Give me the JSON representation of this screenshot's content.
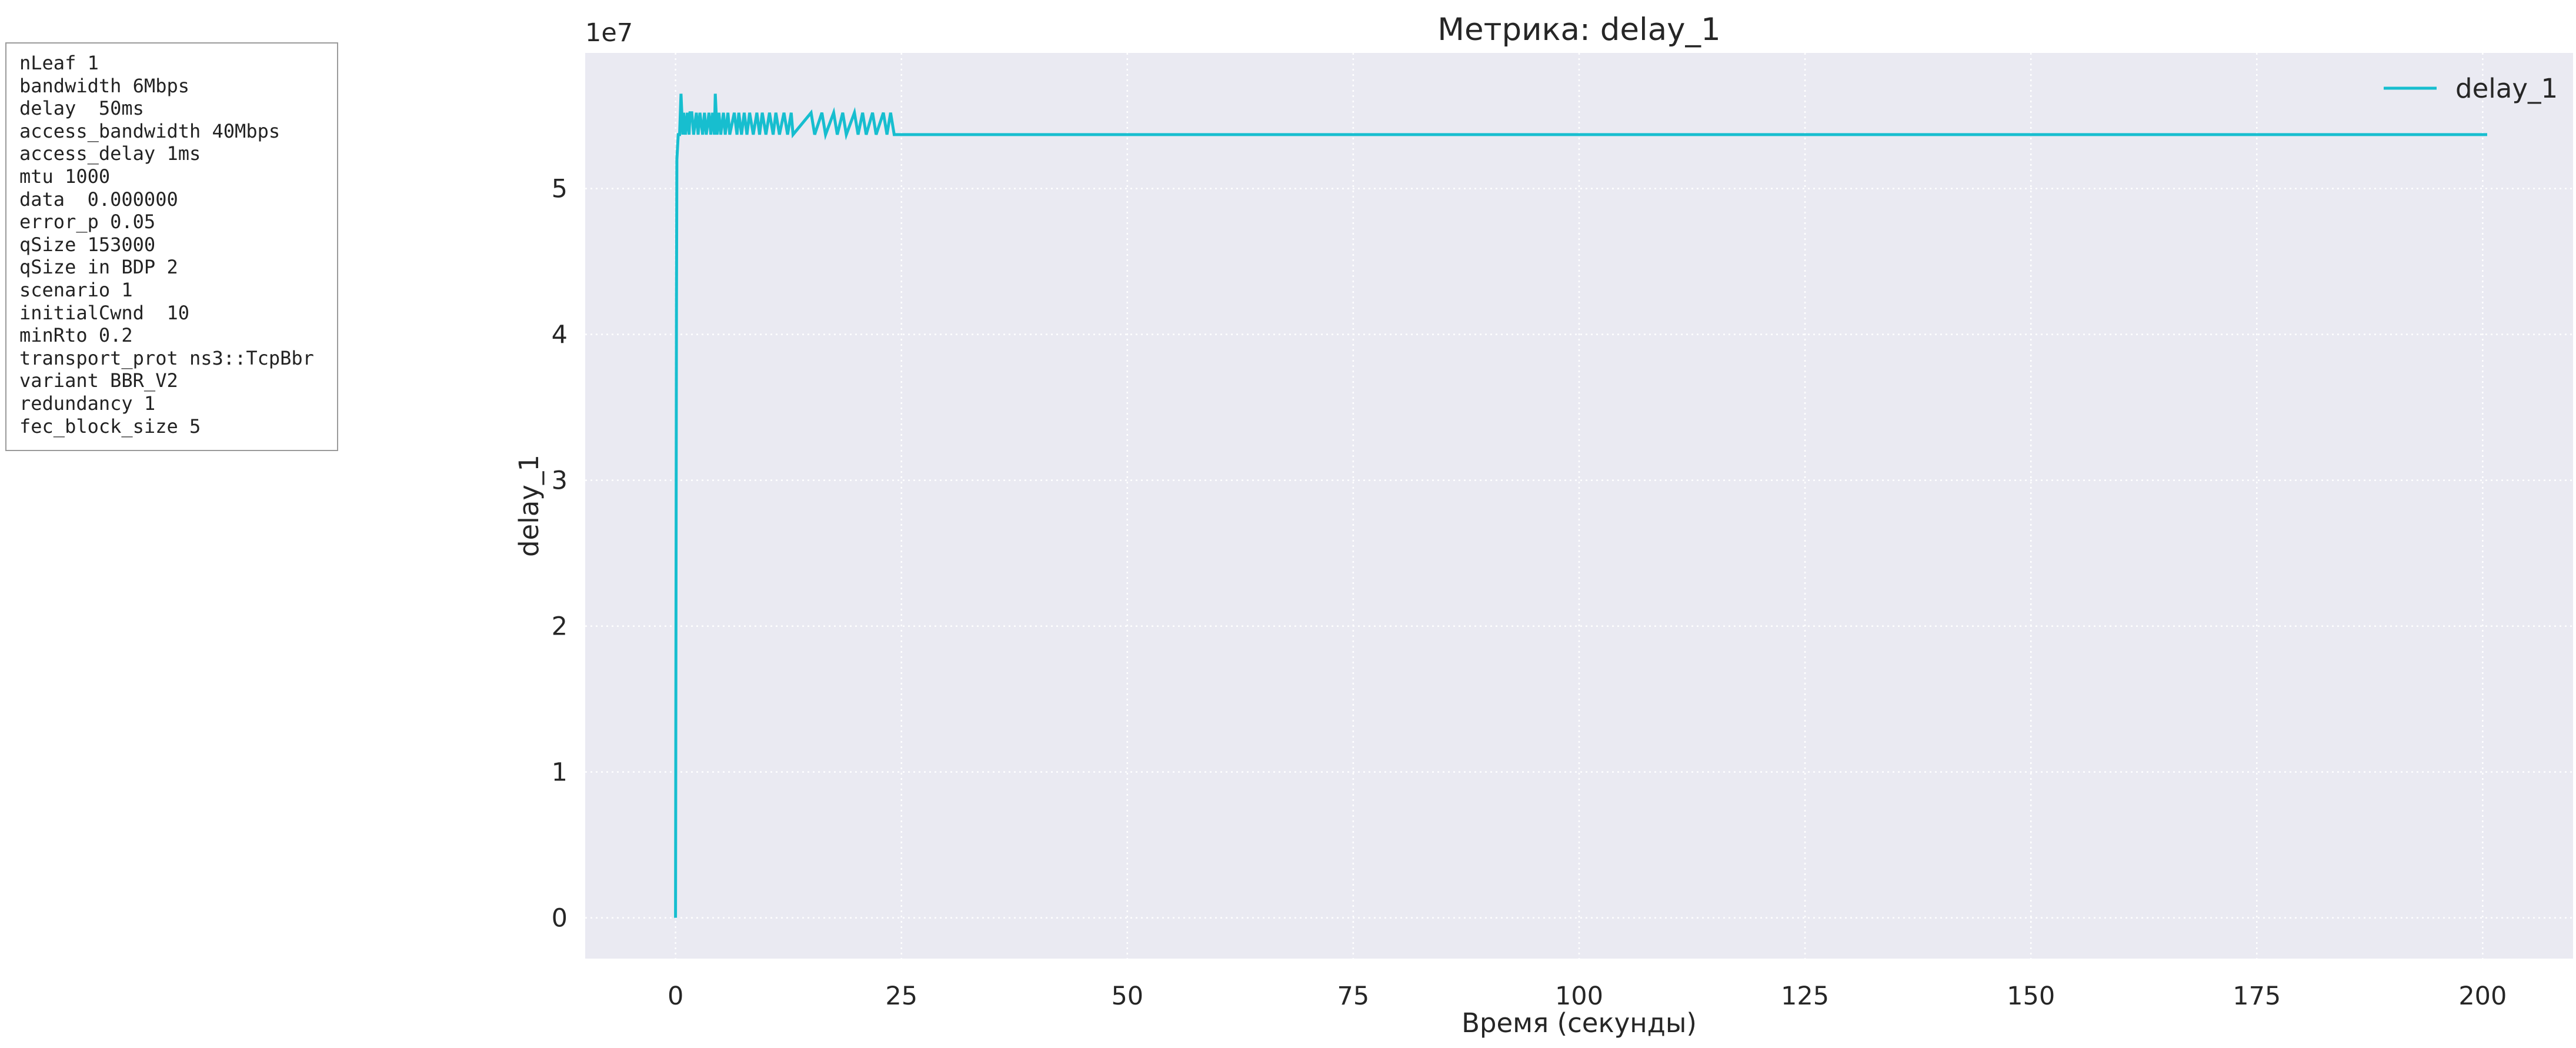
{
  "params": [
    "nLeaf 1",
    "bandwidth 6Mbps",
    "delay  50ms",
    "access_bandwidth 40Mbps",
    "access_delay 1ms",
    "mtu 1000",
    "data  0.000000",
    "error_p 0.05",
    "qSize 153000",
    "qSize in BDP 2",
    "scenario 1",
    "initialCwnd  10",
    "minRto 0.2",
    "transport_prot ns3::TcpBbr",
    "variant BBR_V2",
    "redundancy 1",
    "fec_block_size 5"
  ],
  "chart_data": {
    "type": "line",
    "title": "Метрика: delay_1",
    "xlabel": "Время (секунды)",
    "ylabel": "delay_1",
    "y_offset_label": "1e7",
    "xlim": [
      -10,
      210
    ],
    "ylim": [
      -0.28,
      5.93
    ],
    "xticks": [
      0,
      25,
      50,
      75,
      100,
      125,
      150,
      175,
      200
    ],
    "yticks": [
      0,
      1,
      2,
      3,
      4,
      5
    ],
    "grid": true,
    "legend_position": "top-right",
    "series": [
      {
        "name": "delay_1",
        "color": "#17becf",
        "x": [
          0,
          0.1,
          0.15,
          0.3,
          0.45,
          0.6,
          0.8,
          0.9,
          1.1,
          1.3,
          1.5,
          1.6,
          1.8,
          2.0,
          2.3,
          2.5,
          2.7,
          3.0,
          3.2,
          3.4,
          3.7,
          3.9,
          4.1,
          4.3,
          4.4,
          4.6,
          4.8,
          5.0,
          5.3,
          5.5,
          5.8,
          6.0,
          6.5,
          6.8,
          7.0,
          7.3,
          7.6,
          7.9,
          8.2,
          8.6,
          9.0,
          9.3,
          9.6,
          10.0,
          10.4,
          10.8,
          11.1,
          11.5,
          12.0,
          12.4,
          12.8,
          13.0,
          15.0,
          15.4,
          16.2,
          16.6,
          17.5,
          17.9,
          18.5,
          18.9,
          19.8,
          20.2,
          20.7,
          21.1,
          21.8,
          22.2,
          23.0,
          23.4,
          23.8,
          24.2,
          60,
          100,
          150,
          200.5
        ],
        "values": [
          0,
          4.2,
          5.2,
          5.37,
          5.37,
          5.65,
          5.37,
          5.52,
          5.37,
          5.52,
          5.37,
          5.52,
          5.52,
          5.37,
          5.52,
          5.37,
          5.52,
          5.37,
          5.52,
          5.37,
          5.52,
          5.37,
          5.52,
          5.37,
          5.65,
          5.37,
          5.52,
          5.37,
          5.52,
          5.37,
          5.52,
          5.37,
          5.52,
          5.37,
          5.52,
          5.37,
          5.52,
          5.37,
          5.52,
          5.37,
          5.52,
          5.37,
          5.52,
          5.37,
          5.52,
          5.37,
          5.52,
          5.37,
          5.52,
          5.37,
          5.52,
          5.37,
          5.52,
          5.37,
          5.52,
          5.37,
          5.52,
          5.37,
          5.52,
          5.37,
          5.52,
          5.37,
          5.52,
          5.37,
          5.52,
          5.37,
          5.52,
          5.37,
          5.52,
          5.37,
          5.37,
          5.37,
          5.37,
          5.37
        ]
      }
    ]
  }
}
